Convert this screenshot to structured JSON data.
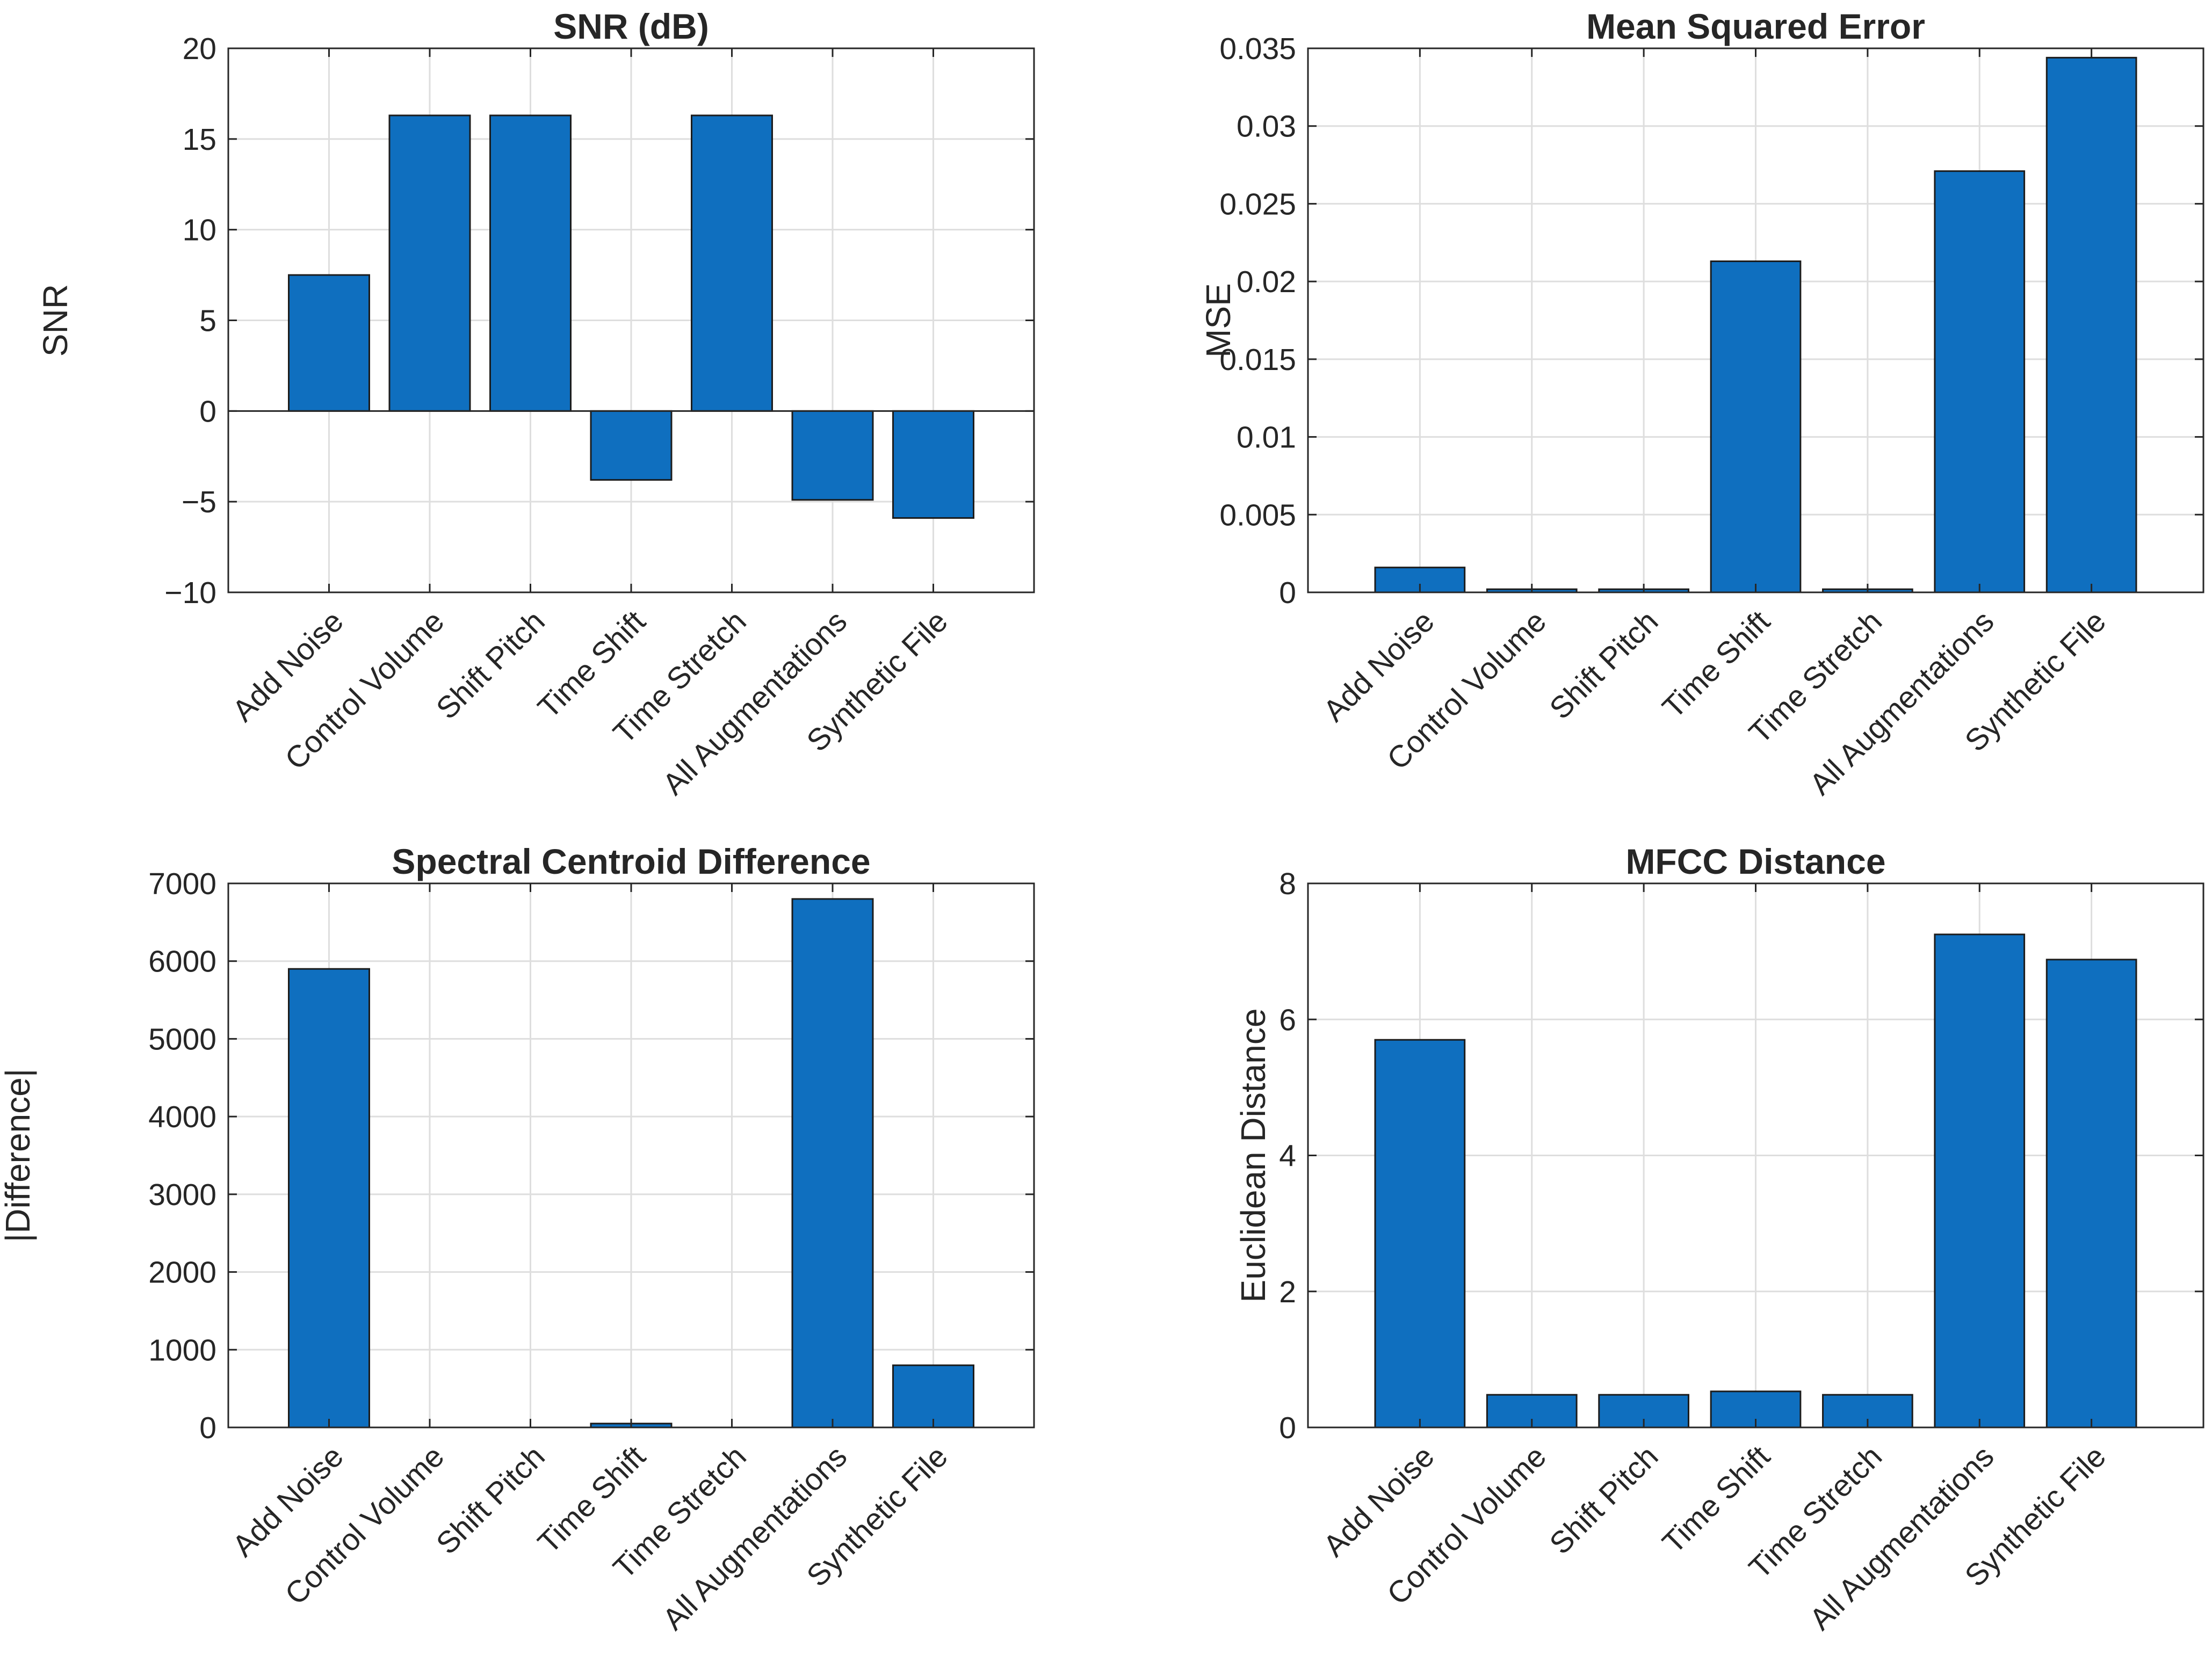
{
  "chart_data": [
    {
      "type": "bar",
      "title": "SNR (dB)",
      "xlabel": "",
      "ylabel": "SNR",
      "categories": [
        "Add Noise",
        "Control Volume",
        "Shift Pitch",
        "Time Shift",
        "Time Stretch",
        "All Augmentations",
        "Synthetic File"
      ],
      "values": [
        7.5,
        16.3,
        16.3,
        -3.8,
        16.3,
        -4.9,
        -5.9
      ],
      "ylim": [
        -10,
        20
      ],
      "yticks": [
        -10,
        -5,
        0,
        5,
        10,
        15,
        20
      ],
      "ytick_labels": [
        "−10",
        "−5",
        "0",
        "5",
        "10",
        "15",
        "20"
      ],
      "grid": true,
      "color": "#0f6fbf"
    },
    {
      "type": "bar",
      "title": "Mean Squared Error",
      "xlabel": "",
      "ylabel": "MSE",
      "categories": [
        "Add Noise",
        "Control Volume",
        "Shift Pitch",
        "Time Shift",
        "Time Stretch",
        "All Augmentations",
        "Synthetic File"
      ],
      "values": [
        0.0016,
        0.0002,
        0.0002,
        0.0213,
        0.0002,
        0.0271,
        0.0344
      ],
      "ylim": [
        0,
        0.035
      ],
      "yticks": [
        0,
        0.005,
        0.01,
        0.015,
        0.02,
        0.025,
        0.03,
        0.035
      ],
      "ytick_labels": [
        "0",
        "0.005",
        "0.01",
        "0.015",
        "0.02",
        "0.025",
        "0.03",
        "0.035"
      ],
      "grid": true,
      "color": "#0f6fbf"
    },
    {
      "type": "bar",
      "title": "Spectral Centroid Difference",
      "xlabel": "",
      "ylabel": "|Difference|",
      "categories": [
        "Add Noise",
        "Control Volume",
        "Shift Pitch",
        "Time Shift",
        "Time Stretch",
        "All Augmentations",
        "Synthetic File"
      ],
      "values": [
        5900,
        0,
        0,
        50,
        0,
        6800,
        800
      ],
      "ylim": [
        0,
        7000
      ],
      "yticks": [
        0,
        1000,
        2000,
        3000,
        4000,
        5000,
        6000,
        7000
      ],
      "ytick_labels": [
        "0",
        "1000",
        "2000",
        "3000",
        "4000",
        "5000",
        "6000",
        "7000"
      ],
      "grid": true,
      "color": "#0f6fbf"
    },
    {
      "type": "bar",
      "title": "MFCC Distance",
      "xlabel": "",
      "ylabel": "Euclidean Distance",
      "categories": [
        "Add Noise",
        "Control Volume",
        "Shift Pitch",
        "Time Shift",
        "Time Stretch",
        "All Augmentations",
        "Synthetic File"
      ],
      "values": [
        5.7,
        0.48,
        0.48,
        0.53,
        0.48,
        7.25,
        6.88
      ],
      "ylim": [
        0,
        8
      ],
      "yticks": [
        0,
        2,
        4,
        6,
        8
      ],
      "ytick_labels": [
        "0",
        "2",
        "4",
        "6",
        "8"
      ],
      "grid": true,
      "color": "#0f6fbf"
    }
  ]
}
